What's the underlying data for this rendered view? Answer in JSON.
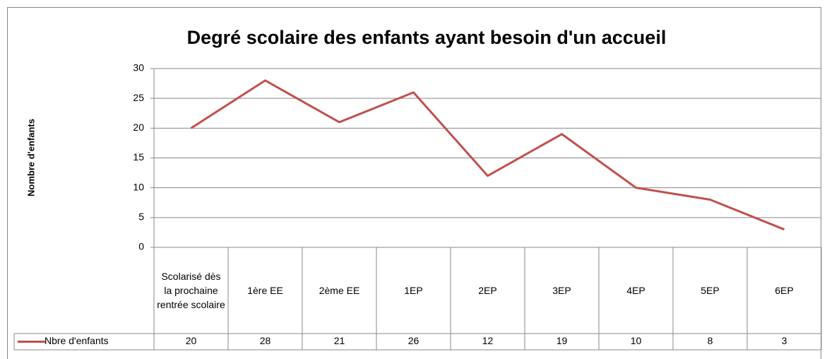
{
  "chart_data": {
    "type": "line",
    "title": "Degré scolaire des enfants ayant besoin d'un accueil",
    "y_label": "Nombre d'enfants",
    "categories": [
      "Scolarisé dès la prochaine rentrée scolaire",
      "1ère EE",
      "2ème EE",
      "1EP",
      "2EP",
      "3EP",
      "4EP",
      "5EP",
      "6EP"
    ],
    "series": [
      {
        "name": "Nbre d'enfants",
        "color": "#c0504d",
        "values": [
          20,
          28,
          21,
          26,
          12,
          19,
          10,
          8,
          3
        ]
      }
    ],
    "ylim": [
      0,
      30
    ],
    "yticks": [
      0,
      5,
      10,
      15,
      20,
      25,
      30
    ],
    "grid": true,
    "data_table": true
  }
}
